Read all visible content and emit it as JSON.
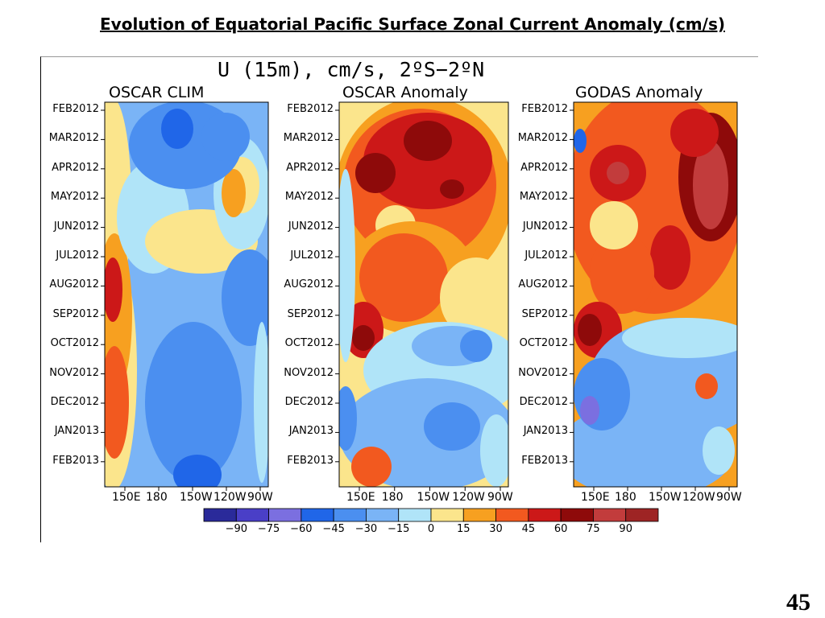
{
  "slide": {
    "title": "Evolution of Equatorial Pacific Surface Zonal Current Anomaly (cm/s)",
    "page_number": "45"
  },
  "figure": {
    "title": "U (15m), cm/s, 2ºS−2ºN"
  },
  "chart_data": {
    "type": "heatmap",
    "variable": "U (15m)",
    "units": "cm/s",
    "panels": [
      {
        "title": "OSCAR CLIM",
        "field": "climatology"
      },
      {
        "title": "OSCAR Anomaly",
        "field": "anomaly"
      },
      {
        "title": "GODAS Anomaly",
        "field": "anomaly"
      }
    ],
    "y_axis": {
      "ticks": [
        "FEB2012",
        "MAR2012",
        "APR2012",
        "MAY2012",
        "JUN2012",
        "JUL2012",
        "AUG2012",
        "SEP2012",
        "OCT2012",
        "NOV2012",
        "DEC2012",
        "JAN2013",
        "FEB2013"
      ]
    },
    "x_axis": {
      "ticks": [
        "150E",
        "180",
        "150W",
        "120W",
        "90W"
      ]
    },
    "colorbar": {
      "levels": [
        "−90",
        "−75",
        "−60",
        "−45",
        "−30",
        "−15",
        "0",
        "15",
        "30",
        "45",
        "60",
        "75",
        "90"
      ],
      "colors": [
        "#2a2a9a",
        "#4a3fc7",
        "#7b6fe0",
        "#2066e8",
        "#4b8ff0",
        "#7ab4f6",
        "#b0e4f8",
        "#fbe58c",
        "#f7a020",
        "#f2591f",
        "#cc1818",
        "#8e0a0a",
        "#c23c3c",
        "#9e2424"
      ]
    }
  }
}
